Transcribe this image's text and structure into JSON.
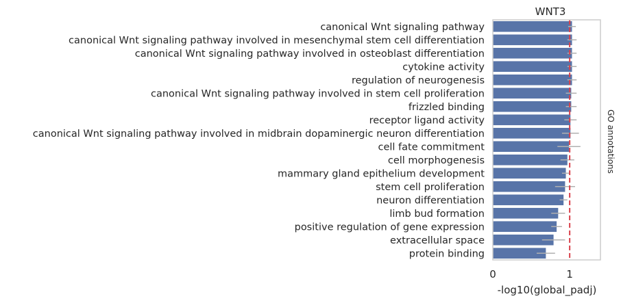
{
  "chart_data": {
    "type": "bar",
    "orientation": "horizontal",
    "title": "WNT3",
    "xlabel": "-log10(global_padj)",
    "ylabel_right": "GO annotations",
    "xlim": [
      0,
      1.4
    ],
    "xticks": [
      0,
      1
    ],
    "xtick_labels": [
      "0",
      "1"
    ],
    "threshold": 1.0,
    "grid": false,
    "categories": [
      "canonical Wnt signaling pathway",
      "canonical Wnt signaling pathway involved in mesenchymal stem cell differentiation",
      "canonical Wnt signaling pathway involved in osteoblast differentiation",
      "cytokine activity",
      "regulation of neurogenesis",
      "canonical Wnt signaling pathway involved in stem cell proliferation",
      "frizzled binding",
      "receptor ligand activity",
      "canonical Wnt signaling pathway involved in midbrain dopaminergic neuron differentiation",
      "cell fate commitment",
      "cell morphogenesis",
      "mammary gland epithelium development",
      "stem cell proliferation",
      "neuron differentiation",
      "limb bud formation",
      "positive regulation of gene expression",
      "extracellular space",
      "protein binding"
    ],
    "values": [
      1.03,
      1.03,
      1.03,
      1.03,
      1.03,
      1.02,
      1.02,
      1.01,
      1.01,
      0.99,
      0.97,
      0.95,
      0.94,
      0.92,
      0.85,
      0.83,
      0.79,
      0.69
    ],
    "errors": [
      0.05,
      0.06,
      0.06,
      0.06,
      0.06,
      0.07,
      0.07,
      0.08,
      0.11,
      0.15,
      0.09,
      0.05,
      0.13,
      0.05,
      0.09,
      0.07,
      0.15,
      0.12
    ],
    "colors": {
      "bar": "#5874a8",
      "threshold": "#d9404a",
      "errorbar": "#b0b0b0",
      "spine": "#cccccc"
    }
  }
}
